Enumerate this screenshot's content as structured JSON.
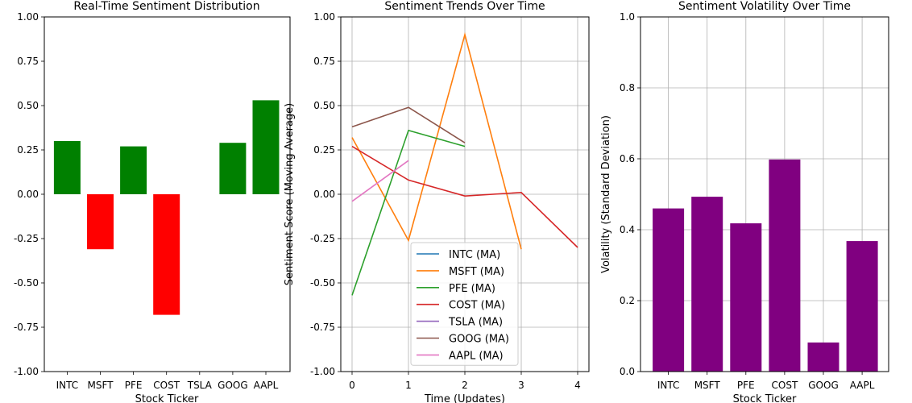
{
  "chart_data": [
    {
      "type": "bar",
      "title": "Real-Time Sentiment Distribution",
      "xlabel": "Stock Ticker",
      "ylabel": "",
      "categories": [
        "INTC",
        "MSFT",
        "PFE",
        "COST",
        "TSLA",
        "GOOG",
        "AAPL"
      ],
      "values": [
        0.3,
        -0.31,
        0.27,
        -0.68,
        0.0,
        0.29,
        0.53
      ],
      "ylim": [
        -1.0,
        1.0
      ],
      "yticks": [
        "-1.00",
        "-0.75",
        "-0.50",
        "-0.25",
        "0.00",
        "0.25",
        "0.50",
        "0.75",
        "1.00"
      ],
      "positive_color": "#008000",
      "negative_color": "#ff0000",
      "grid": false
    },
    {
      "type": "line",
      "title": "Sentiment Trends Over Time",
      "xlabel": "Time (Updates)",
      "ylabel": "Sentiment Score (Moving Average)",
      "xlim": [
        -0.2,
        4.2
      ],
      "ylim": [
        -1.0,
        1.0
      ],
      "xticks": [
        "0",
        "1",
        "2",
        "3",
        "4"
      ],
      "yticks": [
        "-1.00",
        "-0.75",
        "-0.50",
        "-0.25",
        "0.00",
        "0.25",
        "0.50",
        "0.75",
        "1.00"
      ],
      "grid": true,
      "legend_position": "lower-center",
      "series": [
        {
          "name": "INTC (MA)",
          "color": "#1f77b4",
          "x": [],
          "y": []
        },
        {
          "name": "MSFT (MA)",
          "color": "#ff7f0e",
          "x": [
            0,
            1,
            2,
            3
          ],
          "y": [
            0.32,
            -0.26,
            0.9,
            -0.31
          ]
        },
        {
          "name": "PFE (MA)",
          "color": "#2ca02c",
          "x": [
            0,
            1,
            2
          ],
          "y": [
            -0.57,
            0.36,
            0.27
          ]
        },
        {
          "name": "COST (MA)",
          "color": "#d62728",
          "x": [
            0,
            1,
            2,
            3,
            4
          ],
          "y": [
            0.27,
            0.08,
            -0.01,
            0.01,
            -0.3
          ]
        },
        {
          "name": "TSLA (MA)",
          "color": "#9467bd",
          "x": [],
          "y": []
        },
        {
          "name": "GOOG (MA)",
          "color": "#8c564b",
          "x": [
            0,
            1,
            2
          ],
          "y": [
            0.38,
            0.49,
            0.29
          ]
        },
        {
          "name": "AAPL (MA)",
          "color": "#e377c2",
          "x": [
            0,
            1
          ],
          "y": [
            -0.04,
            0.19
          ]
        }
      ]
    },
    {
      "type": "bar",
      "title": "Sentiment Volatility Over Time",
      "xlabel": "Stock Ticker",
      "ylabel": "Volatility (Standard Deviation)",
      "categories": [
        "INTC",
        "MSFT",
        "PFE",
        "COST",
        "GOOG",
        "AAPL"
      ],
      "values": [
        0.46,
        0.493,
        0.418,
        0.598,
        0.082,
        0.368
      ],
      "ylim": [
        0.0,
        1.0
      ],
      "yticks": [
        "0.0",
        "0.2",
        "0.4",
        "0.6",
        "0.8",
        "1.0"
      ],
      "bar_color": "#800080",
      "grid": true
    }
  ]
}
